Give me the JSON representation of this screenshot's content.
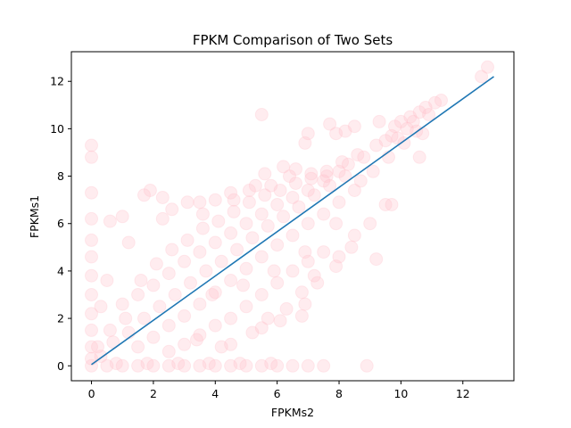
{
  "chart_data": {
    "type": "scatter",
    "title": "FPKM Comparison of Two Sets",
    "xlabel": "FPKMs2",
    "ylabel": "FPKMs1",
    "xlim": [
      -0.65,
      13.65
    ],
    "ylim": [
      -0.63,
      13.25
    ],
    "xticks": [
      0,
      2,
      4,
      6,
      8,
      10,
      12
    ],
    "yticks": [
      0,
      2,
      4,
      6,
      8,
      10,
      12
    ],
    "grid": false,
    "legend": "none",
    "colors": {
      "points": "#ffc0cb",
      "line": "#1f77b4"
    },
    "marker_alpha": 0.3,
    "series": [
      {
        "kind": "scatter",
        "points": [
          [
            12.8,
            12.6
          ],
          [
            12.6,
            12.2
          ],
          [
            11.1,
            11.1
          ],
          [
            10.8,
            10.9
          ],
          [
            10.6,
            10.7
          ],
          [
            10.3,
            10.5
          ],
          [
            10.0,
            10.3
          ],
          [
            9.8,
            10.1
          ],
          [
            9.3,
            10.3
          ],
          [
            8.5,
            10.1
          ],
          [
            7.7,
            10.2
          ],
          [
            8.2,
            9.9
          ],
          [
            7.9,
            9.8
          ],
          [
            7.0,
            9.8
          ],
          [
            6.9,
            9.4
          ],
          [
            10.7,
            9.8
          ],
          [
            10.6,
            8.8
          ],
          [
            9.7,
            6.8
          ],
          [
            9.2,
            4.5
          ],
          [
            8.5,
            5.5
          ],
          [
            8.0,
            4.6
          ],
          [
            7.5,
            4.8
          ],
          [
            7.2,
            3.8
          ],
          [
            6.8,
            2.1
          ],
          [
            5.5,
            10.6
          ],
          [
            0.0,
            9.3
          ],
          [
            0.0,
            8.8
          ],
          [
            0.0,
            7.3
          ],
          [
            0.0,
            6.2
          ],
          [
            0.0,
            5.3
          ],
          [
            0.0,
            4.6
          ],
          [
            0.0,
            3.8
          ],
          [
            0.0,
            3.0
          ],
          [
            0.0,
            2.2
          ],
          [
            0.0,
            1.5
          ],
          [
            0.0,
            0.8
          ],
          [
            0.0,
            0.3
          ],
          [
            0.0,
            0.0
          ],
          [
            0.6,
            6.1
          ],
          [
            1.0,
            6.3
          ],
          [
            1.2,
            5.2
          ],
          [
            0.5,
            3.6
          ],
          [
            0.3,
            2.5
          ],
          [
            0.6,
            1.5
          ],
          [
            0.2,
            0.8
          ],
          [
            1.9,
            7.4
          ],
          [
            1.7,
            7.2
          ],
          [
            2.3,
            7.1
          ],
          [
            2.6,
            6.6
          ],
          [
            3.1,
            6.9
          ],
          [
            3.6,
            6.4
          ],
          [
            4.0,
            7.0
          ],
          [
            4.5,
            7.3
          ],
          [
            5.1,
            7.4
          ],
          [
            5.6,
            8.1
          ],
          [
            6.2,
            8.4
          ],
          [
            6.6,
            8.3
          ],
          [
            7.1,
            8.1
          ],
          [
            7.6,
            8.0
          ],
          [
            8.3,
            8.5
          ],
          [
            8.8,
            8.8
          ],
          [
            9.2,
            9.3
          ],
          [
            9.7,
            9.7
          ],
          [
            10.2,
            10.0
          ],
          [
            5.8,
            7.6
          ],
          [
            1.6,
            3.6
          ],
          [
            2.1,
            4.3
          ],
          [
            2.6,
            4.9
          ],
          [
            3.1,
            5.3
          ],
          [
            3.6,
            5.8
          ],
          [
            4.1,
            6.1
          ],
          [
            4.6,
            6.5
          ],
          [
            5.1,
            6.9
          ],
          [
            5.6,
            7.2
          ],
          [
            6.1,
            7.4
          ],
          [
            6.6,
            7.7
          ],
          [
            7.1,
            7.9
          ],
          [
            7.6,
            8.2
          ],
          [
            8.1,
            8.6
          ],
          [
            8.6,
            8.9
          ],
          [
            1.0,
            2.6
          ],
          [
            1.5,
            3.0
          ],
          [
            2.0,
            3.4
          ],
          [
            2.5,
            3.9
          ],
          [
            3.0,
            4.4
          ],
          [
            3.5,
            4.8
          ],
          [
            4.0,
            5.2
          ],
          [
            4.5,
            5.6
          ],
          [
            5.0,
            6.0
          ],
          [
            5.5,
            6.4
          ],
          [
            6.0,
            6.8
          ],
          [
            6.5,
            7.1
          ],
          [
            7.0,
            7.4
          ],
          [
            7.5,
            7.8
          ],
          [
            8.0,
            8.2
          ],
          [
            1.2,
            1.4
          ],
          [
            1.7,
            2.0
          ],
          [
            2.2,
            2.5
          ],
          [
            2.7,
            3.0
          ],
          [
            3.2,
            3.5
          ],
          [
            3.7,
            4.0
          ],
          [
            4.2,
            4.4
          ],
          [
            4.7,
            4.9
          ],
          [
            5.2,
            5.4
          ],
          [
            5.7,
            5.9
          ],
          [
            6.2,
            6.3
          ],
          [
            6.7,
            6.7
          ],
          [
            7.2,
            7.2
          ],
          [
            7.7,
            7.6
          ],
          [
            8.2,
            8.0
          ],
          [
            1.5,
            0.8
          ],
          [
            2.0,
            1.2
          ],
          [
            2.5,
            1.7
          ],
          [
            3.0,
            2.1
          ],
          [
            3.5,
            2.6
          ],
          [
            4.0,
            3.1
          ],
          [
            4.5,
            3.6
          ],
          [
            5.0,
            4.1
          ],
          [
            5.5,
            4.6
          ],
          [
            6.0,
            5.1
          ],
          [
            6.5,
            5.5
          ],
          [
            7.0,
            6.0
          ],
          [
            7.5,
            6.4
          ],
          [
            8.0,
            6.9
          ],
          [
            8.5,
            7.4
          ],
          [
            2.5,
            0.6
          ],
          [
            3.0,
            0.9
          ],
          [
            3.5,
            1.3
          ],
          [
            4.0,
            1.7
          ],
          [
            4.5,
            2.0
          ],
          [
            5.0,
            2.5
          ],
          [
            5.5,
            3.0
          ],
          [
            6.0,
            3.5
          ],
          [
            6.5,
            4.0
          ],
          [
            7.0,
            4.4
          ],
          [
            4.5,
            0.9
          ],
          [
            5.2,
            1.4
          ],
          [
            5.7,
            2.0
          ],
          [
            6.3,
            2.4
          ],
          [
            6.8,
            3.1
          ],
          [
            7.3,
            3.5
          ],
          [
            7.9,
            4.2
          ],
          [
            8.4,
            5.0
          ],
          [
            9.0,
            6.0
          ],
          [
            9.5,
            6.8
          ],
          [
            3.4,
            1.1
          ],
          [
            4.2,
            0.8
          ],
          [
            5.5,
            1.6
          ],
          [
            6.1,
            1.9
          ],
          [
            6.9,
            2.6
          ],
          [
            0.5,
            0.0
          ],
          [
            1.0,
            0.0
          ],
          [
            1.5,
            0.0
          ],
          [
            2.0,
            0.0
          ],
          [
            2.5,
            0.0
          ],
          [
            3.0,
            0.0
          ],
          [
            3.5,
            0.0
          ],
          [
            4.0,
            0.0
          ],
          [
            4.5,
            0.0
          ],
          [
            5.0,
            0.0
          ],
          [
            5.5,
            0.0
          ],
          [
            6.0,
            0.0
          ],
          [
            6.5,
            0.0
          ],
          [
            7.0,
            0.0
          ],
          [
            7.5,
            0.0
          ],
          [
            8.9,
            0.0
          ],
          [
            0.8,
            0.1
          ],
          [
            1.8,
            0.1
          ],
          [
            2.8,
            0.1
          ],
          [
            3.8,
            0.1
          ],
          [
            4.8,
            0.1
          ],
          [
            5.8,
            0.1
          ],
          [
            0.3,
            0.4
          ],
          [
            0.7,
            1.0
          ],
          [
            1.1,
            2.0
          ],
          [
            9.5,
            9.5
          ],
          [
            9.9,
            9.6
          ],
          [
            10.4,
            10.3
          ],
          [
            10.9,
            10.6
          ],
          [
            11.3,
            11.2
          ],
          [
            4.6,
            7.0
          ],
          [
            5.3,
            7.6
          ],
          [
            6.4,
            8.0
          ],
          [
            3.5,
            6.9
          ],
          [
            2.3,
            6.2
          ],
          [
            3.9,
            3.0
          ],
          [
            4.9,
            3.4
          ],
          [
            5.9,
            4.0
          ],
          [
            6.9,
            4.8
          ],
          [
            7.9,
            6.0
          ],
          [
            8.7,
            7.8
          ],
          [
            9.1,
            8.2
          ],
          [
            9.6,
            8.8
          ],
          [
            10.1,
            9.4
          ],
          [
            10.5,
            9.9
          ]
        ]
      },
      {
        "kind": "line",
        "points": [
          [
            0.0,
            0.05
          ],
          [
            13.0,
            12.2
          ]
        ]
      }
    ]
  }
}
